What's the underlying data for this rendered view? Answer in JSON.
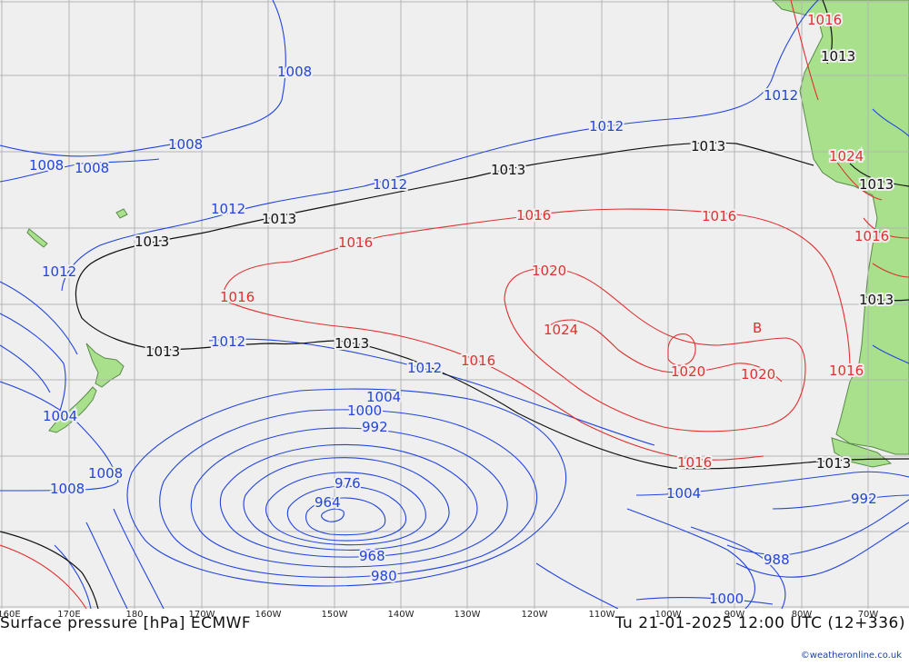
{
  "map": {
    "title": "Surface pressure [hPa] ECMWF",
    "valid_time": "Tu 21-01-2025 12:00 UTC (12+336)",
    "credit": "©weatheronline.co.uk",
    "longitude_labels": [
      "160E",
      "170E",
      "180",
      "170W",
      "160W",
      "150W",
      "140W",
      "130W",
      "120W",
      "110W",
      "100W",
      "90W",
      "80W",
      "70W"
    ],
    "colors": {
      "ocean": "#efefef",
      "land": "#a8e08c",
      "grid": "#b4b4b4",
      "low_isobar": "#2244dd",
      "standard_isobar": "#111111",
      "high_isobar": "#e03030"
    },
    "features": {
      "high_marker": "B"
    },
    "isobars": [
      {
        "label": "1016",
        "category": "high"
      },
      {
        "label": "1013",
        "category": "standard"
      },
      {
        "label": "1012",
        "category": "low"
      },
      {
        "label": "1008",
        "category": "low"
      },
      {
        "label": "1013",
        "category": "standard"
      },
      {
        "label": "1008",
        "category": "low"
      },
      {
        "label": "1008",
        "category": "low"
      },
      {
        "label": "1012",
        "category": "low"
      },
      {
        "label": "1008",
        "category": "low"
      },
      {
        "label": "1013",
        "category": "standard"
      },
      {
        "label": "1012",
        "category": "low"
      },
      {
        "label": "1012",
        "category": "low"
      },
      {
        "label": "1013",
        "category": "standard"
      },
      {
        "label": "1013",
        "category": "standard"
      },
      {
        "label": "1016",
        "category": "high"
      },
      {
        "label": "1016",
        "category": "high"
      },
      {
        "label": "1016",
        "category": "high"
      },
      {
        "label": "1012",
        "category": "low"
      },
      {
        "label": "1013",
        "category": "standard"
      },
      {
        "label": "1016",
        "category": "high"
      },
      {
        "label": "1020",
        "category": "high"
      },
      {
        "label": "1020",
        "category": "high"
      },
      {
        "label": "1016",
        "category": "high"
      },
      {
        "label": "1013",
        "category": "standard"
      },
      {
        "label": "1024",
        "category": "high"
      },
      {
        "label": "1013",
        "category": "standard"
      },
      {
        "label": "1012",
        "category": "low"
      },
      {
        "label": "1013",
        "category": "standard"
      },
      {
        "label": "1012",
        "category": "low"
      },
      {
        "label": "1016",
        "category": "high"
      },
      {
        "label": "1020",
        "category": "high"
      },
      {
        "label": "1024",
        "category": "high"
      },
      {
        "label": "1016",
        "category": "high"
      },
      {
        "label": "1004",
        "category": "low"
      },
      {
        "label": "1000",
        "category": "low"
      },
      {
        "label": "992",
        "category": "low"
      },
      {
        "label": "1004",
        "category": "low"
      },
      {
        "label": "1008",
        "category": "low"
      },
      {
        "label": "1008",
        "category": "low"
      },
      {
        "label": "1016",
        "category": "high"
      },
      {
        "label": "1013",
        "category": "standard"
      },
      {
        "label": "1004",
        "category": "low"
      },
      {
        "label": "992",
        "category": "low"
      },
      {
        "label": "976",
        "category": "low"
      },
      {
        "label": "964",
        "category": "low"
      },
      {
        "label": "988",
        "category": "low"
      },
      {
        "label": "968",
        "category": "low"
      },
      {
        "label": "980",
        "category": "low"
      },
      {
        "label": "1000",
        "category": "low"
      }
    ]
  }
}
